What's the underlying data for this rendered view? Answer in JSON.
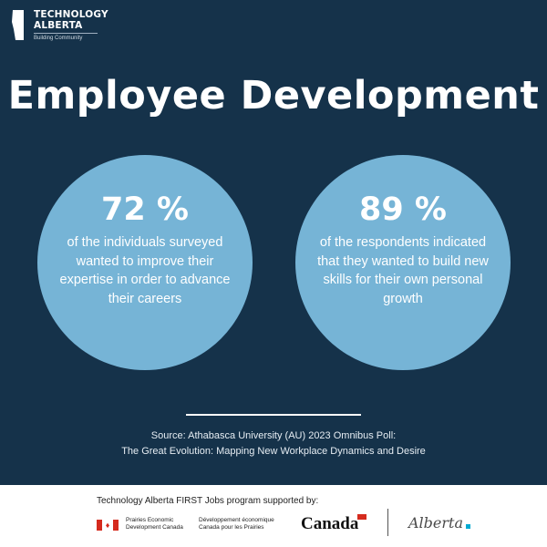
{
  "logo": {
    "line1": "TECHNOLOGY",
    "line2": "ALBERTA",
    "tagline": "Building Community"
  },
  "title": "Employee Development",
  "stats": [
    {
      "value": "72 %",
      "text": "of the individuals surveyed wanted to improve their expertise in order to advance their careers"
    },
    {
      "value": "89 %",
      "text": "of the respondents indicated that they wanted to build new skills for their own personal growth"
    }
  ],
  "source": {
    "line1": "Source: Athabasca University (AU) 2023 Omnibus Poll:",
    "line2": "The Great Evolution: Mapping New Workplace Dynamics and Desire"
  },
  "footer": {
    "support_text": "Technology Alberta FIRST Jobs program supported by:",
    "prairies_en_1": "Prairies Economic",
    "prairies_en_2": "Development Canada",
    "prairies_fr_1": "Développement économique",
    "prairies_fr_2": "Canada pour les Prairies",
    "canada_wordmark": "Canada",
    "alberta_wordmark": "Alberta"
  },
  "colors": {
    "background": "#15324a",
    "circle": "#76b4d6",
    "canada_red": "#d52b1e",
    "alberta_blue": "#00aad2"
  }
}
